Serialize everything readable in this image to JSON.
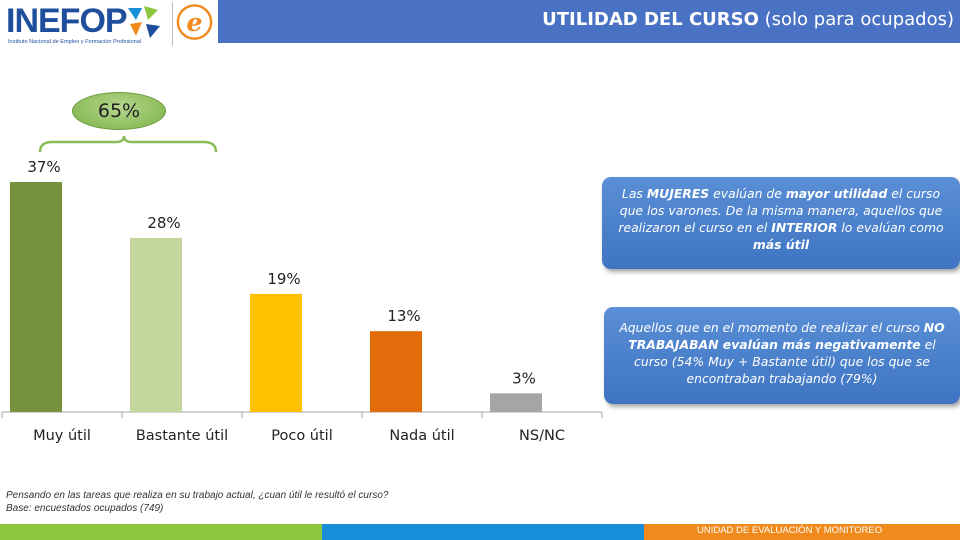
{
  "header": {
    "title_bold": "UTILIDAD DEL CURSO",
    "title_rest": " (solo para ocupados)"
  },
  "logo": {
    "text": "INEFOP",
    "subtitle": "Instituto Nacional de Empleo y Formación Profesional",
    "second_logo_icon": "e-logo-icon"
  },
  "bracket": {
    "label": "65%"
  },
  "chart_data": {
    "type": "bar",
    "categories": [
      "Muy útil",
      "Bastante útil",
      "Poco útil",
      "Nada útil",
      "NS/NC"
    ],
    "values": [
      37,
      28,
      19,
      13,
      3
    ],
    "value_labels": [
      "37%",
      "28%",
      "19%",
      "13%",
      "3%"
    ],
    "colors": [
      "#76923c",
      "#c3d69b",
      "#ffc000",
      "#e36c0a",
      "#a6a6a6"
    ],
    "title": "",
    "xlabel": "",
    "ylabel": "",
    "ylim": [
      0,
      37
    ],
    "grid": false,
    "legend": "none"
  },
  "callouts": {
    "one": {
      "p1": "Las ",
      "b1": "MUJERES",
      "p2": " evalúan de ",
      "b2": "mayor utilidad",
      "p3": " el curso que los varones.  De la misma manera,  aquellos que realizaron el curso en  el ",
      "b3": "INTERIOR",
      "p4": " lo evalúan como ",
      "b4": "más útil"
    },
    "two": {
      "p1": "Aquellos que en el momento de realizar el curso ",
      "b1": "NO TRABAJABAN evalúan más negativamente",
      "p2": " el curso (54% Muy + Bastante útil) que los que se encontraban trabajando  (79%)"
    }
  },
  "footnote": {
    "line1": "Pensando en las tareas que realiza en su trabajo actual, ¿cuan útil le resultó el curso?",
    "line2": "Base: encuestados ocupados (749)"
  },
  "footer": {
    "label": "UNIDAD DE EVALUACIÓN Y MONITOREO",
    "colors": [
      "#8dc63f",
      "#1a8fd9",
      "#f08a1c"
    ]
  }
}
